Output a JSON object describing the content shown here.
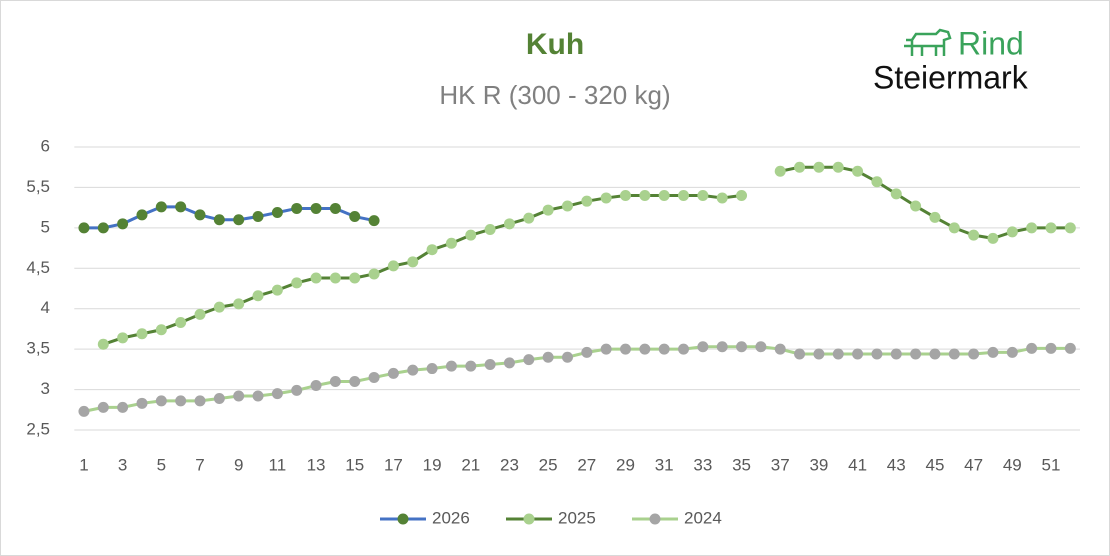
{
  "chart_data": {
    "type": "line",
    "title": "Kuh",
    "subtitle": "HK R (300 - 320 kg)",
    "logo": {
      "line1": "Rind",
      "line2": "Steiermark"
    },
    "x": [
      1,
      2,
      3,
      4,
      5,
      6,
      7,
      8,
      9,
      10,
      11,
      12,
      13,
      14,
      15,
      16,
      17,
      18,
      19,
      20,
      21,
      22,
      23,
      24,
      25,
      26,
      27,
      28,
      29,
      30,
      31,
      32,
      33,
      34,
      35,
      36,
      37,
      38,
      39,
      40,
      41,
      42,
      43,
      44,
      45,
      46,
      47,
      48,
      49,
      50,
      51,
      52
    ],
    "xlim": [
      0.5,
      52.5
    ],
    "xticks": [
      1,
      3,
      5,
      7,
      9,
      11,
      13,
      15,
      17,
      19,
      21,
      23,
      25,
      27,
      29,
      31,
      33,
      35,
      37,
      39,
      41,
      43,
      45,
      47,
      49,
      51
    ],
    "ylim": [
      2.5,
      6
    ],
    "yticks": [
      {
        "value": 2.5,
        "label": "2,5"
      },
      3,
      {
        "value": 3.5,
        "label": "3,5"
      },
      4,
      {
        "value": 4.5,
        "label": "4,5"
      },
      5,
      {
        "value": 5.5,
        "label": "5,5"
      },
      6
    ],
    "grid": true,
    "legend": "bottom",
    "series": [
      {
        "name": "2026",
        "color": "#4472c4",
        "marker_color": "#548235",
        "values": [
          5.0,
          5.0,
          5.05,
          5.16,
          5.26,
          5.26,
          5.16,
          5.1,
          5.1,
          5.14,
          5.19,
          5.24,
          5.24,
          5.24,
          5.14,
          5.09,
          null,
          null,
          null,
          null,
          null,
          null,
          null,
          null,
          null,
          null,
          null,
          null,
          null,
          null,
          null,
          null,
          null,
          null,
          null,
          null,
          null,
          null,
          null,
          null,
          null,
          null,
          null,
          null,
          null,
          null,
          null,
          null,
          null,
          null,
          null,
          null
        ]
      },
      {
        "name": "2025",
        "color": "#548235",
        "marker_color": "#a9d18e",
        "values": [
          null,
          3.56,
          3.64,
          3.69,
          3.74,
          3.83,
          3.93,
          4.02,
          4.06,
          4.16,
          4.23,
          4.32,
          4.38,
          4.38,
          4.38,
          4.43,
          4.53,
          4.58,
          4.73,
          4.81,
          4.91,
          4.98,
          5.05,
          5.12,
          5.22,
          5.27,
          5.33,
          5.37,
          5.4,
          5.4,
          5.4,
          5.4,
          5.4,
          5.37,
          5.4,
          null,
          5.7,
          5.75,
          5.75,
          5.75,
          5.7,
          5.57,
          5.42,
          5.27,
          5.13,
          5.0,
          4.91,
          4.87,
          4.95,
          5.0,
          5.0,
          5.0
        ]
      },
      {
        "name": "2024",
        "color": "#a9d18e",
        "marker_color": "#a5a5a5",
        "values": [
          2.73,
          2.78,
          2.78,
          2.83,
          2.86,
          2.86,
          2.86,
          2.89,
          2.92,
          2.92,
          2.95,
          2.99,
          3.05,
          3.1,
          3.1,
          3.15,
          3.2,
          3.24,
          3.26,
          3.29,
          3.29,
          3.31,
          3.33,
          3.37,
          3.4,
          3.4,
          3.46,
          3.5,
          3.5,
          3.5,
          3.5,
          3.5,
          3.53,
          3.53,
          3.53,
          3.53,
          3.5,
          3.44,
          3.44,
          3.44,
          3.44,
          3.44,
          3.44,
          3.44,
          3.44,
          3.44,
          3.44,
          3.46,
          3.46,
          3.51,
          3.51,
          3.51
        ]
      }
    ]
  }
}
